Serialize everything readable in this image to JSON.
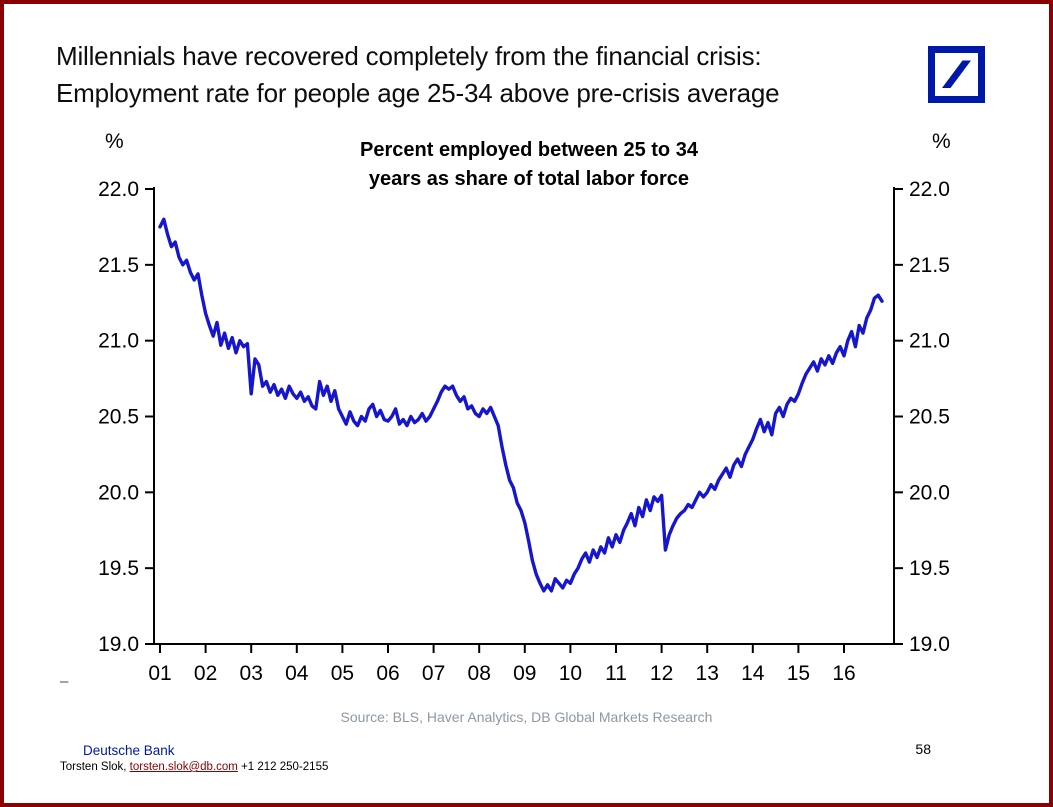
{
  "page": {
    "title_line1": "Millennials have recovered completely from the financial crisis:",
    "title_line2": "Employment rate for people age 25-34 above pre-crisis average",
    "logo_icon": "deutsche-bank-slash-logo",
    "stray_mark": "–",
    "source": "Source: BLS, Haver Analytics, DB Global Markets Research",
    "page_number": "58",
    "footer": {
      "brand": "Deutsche Bank",
      "contact_prefix": "Torsten Slok, ",
      "contact_email": "torsten.slok@db.com",
      "contact_suffix": " +1 212 250-2155"
    },
    "colors": {
      "page_border": "#8b0000",
      "brand_blue": "#0018a8",
      "line_blue": "#1616cf",
      "source_gray": "#8d98a5",
      "email_red": "#8b0000"
    }
  },
  "chart_data": {
    "type": "line",
    "title_line1": "Percent employed between 25 to 34",
    "title_line2": "years as share of total labor force",
    "y_unit": "%",
    "ylabel": "%",
    "xlabel": "",
    "ylim": [
      19.0,
      22.0
    ],
    "yticks": [
      19.0,
      19.5,
      20.0,
      20.5,
      21.0,
      21.5,
      22.0
    ],
    "x_start_year": 2001,
    "x_tick_labels": [
      "01",
      "02",
      "03",
      "04",
      "05",
      "06",
      "07",
      "08",
      "09",
      "10",
      "11",
      "12",
      "13",
      "14",
      "15",
      "16"
    ],
    "grid": false,
    "legend": "none",
    "line_color": "#1616cf",
    "series": [
      {
        "name": "Employment rate, age 25-34, share of total labor force (%)",
        "start": 2001.0,
        "interval_years": 0.0833333,
        "values": [
          21.75,
          21.8,
          21.7,
          21.62,
          21.65,
          21.55,
          21.5,
          21.53,
          21.45,
          21.4,
          21.44,
          21.3,
          21.18,
          21.1,
          21.03,
          21.12,
          20.97,
          21.05,
          20.95,
          21.02,
          20.92,
          21.0,
          20.96,
          20.98,
          20.65,
          20.88,
          20.84,
          20.7,
          20.73,
          20.66,
          20.71,
          20.64,
          20.68,
          20.62,
          20.7,
          20.65,
          20.62,
          20.66,
          20.6,
          20.63,
          20.57,
          20.55,
          20.73,
          20.64,
          20.7,
          20.6,
          20.67,
          20.55,
          20.5,
          20.45,
          20.53,
          20.47,
          20.44,
          20.5,
          20.47,
          20.55,
          20.58,
          20.5,
          20.54,
          20.48,
          20.47,
          20.5,
          20.55,
          20.45,
          20.48,
          20.44,
          20.5,
          20.46,
          20.48,
          20.52,
          20.47,
          20.5,
          20.55,
          20.6,
          20.66,
          20.7,
          20.68,
          20.7,
          20.64,
          20.6,
          20.63,
          20.55,
          20.57,
          20.52,
          20.5,
          20.55,
          20.52,
          20.56,
          20.5,
          20.44,
          20.3,
          20.18,
          20.08,
          20.03,
          19.93,
          19.88,
          19.8,
          19.68,
          19.55,
          19.46,
          19.4,
          19.35,
          19.39,
          19.35,
          19.43,
          19.4,
          19.37,
          19.42,
          19.4,
          19.46,
          19.5,
          19.56,
          19.6,
          19.54,
          19.62,
          19.57,
          19.64,
          19.6,
          19.7,
          19.64,
          19.72,
          19.67,
          19.75,
          19.8,
          19.86,
          19.78,
          19.9,
          19.84,
          19.95,
          19.88,
          19.97,
          19.94,
          19.98,
          19.62,
          19.72,
          19.78,
          19.83,
          19.86,
          19.88,
          19.92,
          19.9,
          19.95,
          20.0,
          19.97,
          20.0,
          20.05,
          20.02,
          20.08,
          20.12,
          20.16,
          20.1,
          20.18,
          20.22,
          20.17,
          20.25,
          20.3,
          20.35,
          20.42,
          20.48,
          20.4,
          20.46,
          20.38,
          20.52,
          20.56,
          20.5,
          20.58,
          20.62,
          20.6,
          20.65,
          20.72,
          20.78,
          20.82,
          20.86,
          20.8,
          20.88,
          20.84,
          20.9,
          20.85,
          20.92,
          20.96,
          20.9,
          21.0,
          21.06,
          20.96,
          21.1,
          21.05,
          21.15,
          21.2,
          21.28,
          21.3,
          21.26
        ]
      }
    ]
  }
}
